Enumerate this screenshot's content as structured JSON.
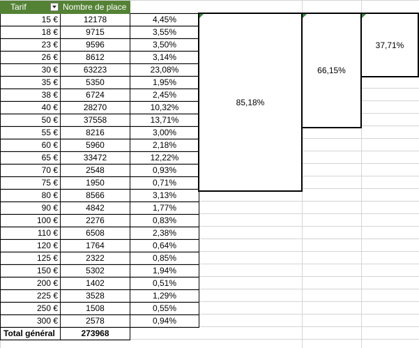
{
  "header": {
    "tarif": "Tarif",
    "count": "Nombre de place"
  },
  "rows": [
    {
      "tarif": "15 €",
      "count": "12178",
      "pct": "4,45%"
    },
    {
      "tarif": "18 €",
      "count": "9715",
      "pct": "3,55%"
    },
    {
      "tarif": "23 €",
      "count": "9596",
      "pct": "3,50%"
    },
    {
      "tarif": "26 €",
      "count": "8612",
      "pct": "3,14%"
    },
    {
      "tarif": "30 €",
      "count": "63223",
      "pct": "23,08%"
    },
    {
      "tarif": "35 €",
      "count": "5350",
      "pct": "1,95%"
    },
    {
      "tarif": "38 €",
      "count": "6724",
      "pct": "2,45%"
    },
    {
      "tarif": "40 €",
      "count": "28270",
      "pct": "10,32%"
    },
    {
      "tarif": "50 €",
      "count": "37558",
      "pct": "13,71%"
    },
    {
      "tarif": "55 €",
      "count": "8216",
      "pct": "3,00%"
    },
    {
      "tarif": "60 €",
      "count": "5960",
      "pct": "2,18%"
    },
    {
      "tarif": "65 €",
      "count": "33472",
      "pct": "12,22%"
    },
    {
      "tarif": "70 €",
      "count": "2548",
      "pct": "0,93%"
    },
    {
      "tarif": "75 €",
      "count": "1950",
      "pct": "0,71%"
    },
    {
      "tarif": "80 €",
      "count": "8566",
      "pct": "3,13%"
    },
    {
      "tarif": "90 €",
      "count": "4842",
      "pct": "1,77%"
    },
    {
      "tarif": "100 €",
      "count": "2276",
      "pct": "0,83%"
    },
    {
      "tarif": "110 €",
      "count": "6508",
      "pct": "2,38%"
    },
    {
      "tarif": "120 €",
      "count": "1764",
      "pct": "0,64%"
    },
    {
      "tarif": "125 €",
      "count": "2322",
      "pct": "0,85%"
    },
    {
      "tarif": "150 €",
      "count": "5302",
      "pct": "1,94%"
    },
    {
      "tarif": "200 €",
      "count": "1402",
      "pct": "0,51%"
    },
    {
      "tarif": "225 €",
      "count": "3528",
      "pct": "1,29%"
    },
    {
      "tarif": "250 €",
      "count": "1508",
      "pct": "0,55%"
    },
    {
      "tarif": "300 €",
      "count": "2578",
      "pct": "0,94%"
    }
  ],
  "total": {
    "label": "Total général",
    "count": "273968"
  },
  "boxes": [
    {
      "value": "85,18%"
    },
    {
      "value": "66,15%"
    },
    {
      "value": "37,71%"
    }
  ],
  "colors": {
    "header_bg": "#548235",
    "indicator": "#2e8b3a"
  }
}
